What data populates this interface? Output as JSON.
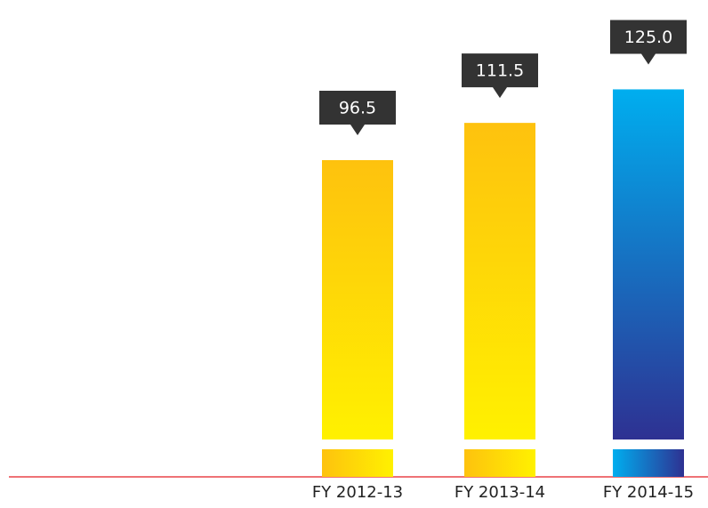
{
  "chart_data": {
    "type": "bar",
    "categories": [
      "FY 2012-13",
      "FY 2013-14",
      "FY 2014-15"
    ],
    "values": [
      96.5,
      111.5,
      125.0
    ],
    "value_labels": [
      "96.5",
      "111.5",
      "125.0"
    ],
    "colors": [
      [
        "#fec20e",
        "#fff100"
      ],
      [
        "#fec20e",
        "#fff100"
      ],
      [
        "#00aeef",
        "#2e3192"
      ]
    ],
    "ylim": [
      -16,
      130
    ]
  }
}
